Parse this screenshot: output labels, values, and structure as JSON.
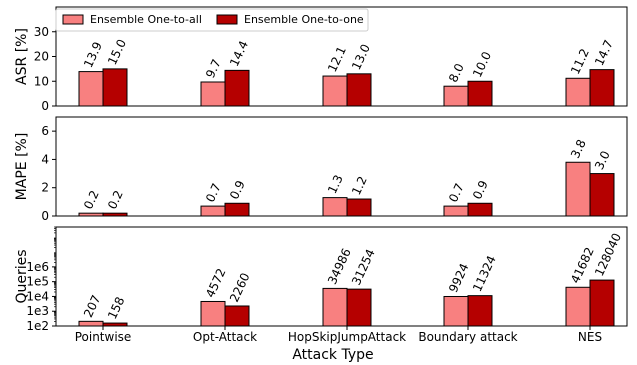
{
  "chart_data": [
    {
      "type": "bar",
      "panel": "asr",
      "ylabel": "ASR [%]",
      "ylim": [
        0,
        40
      ],
      "yticks": [
        "0",
        "10",
        "20",
        "30"
      ],
      "ytick_values": [
        0,
        10,
        20,
        30
      ],
      "scale": "linear",
      "categories": [
        "Pointwise",
        "Opt-Attack",
        "HopSkipJumpAttack",
        "Boundary attack",
        "NES"
      ],
      "series": [
        {
          "name": "Ensemble One-to-all",
          "values": [
            13.9,
            9.7,
            12.1,
            8.0,
            11.2
          ],
          "labels": [
            "13.9",
            "9.7",
            "12.1",
            "8.0",
            "11.2"
          ]
        },
        {
          "name": "Ensemble One-to-one",
          "values": [
            15.0,
            14.4,
            13.0,
            10.0,
            14.7
          ],
          "labels": [
            "15.0",
            "14.4",
            "13.0",
            "10.0",
            "14.7"
          ]
        }
      ],
      "legend": "top-left"
    },
    {
      "type": "bar",
      "panel": "mape",
      "ylabel": "MAPE [%]",
      "ylim": [
        0,
        7
      ],
      "yticks": [
        "0",
        "2",
        "4",
        "6"
      ],
      "ytick_values": [
        0,
        2,
        4,
        6
      ],
      "scale": "linear",
      "categories": [
        "Pointwise",
        "Opt-Attack",
        "HopSkipJumpAttack",
        "Boundary attack",
        "NES"
      ],
      "series": [
        {
          "name": "Ensemble One-to-all",
          "values": [
            0.2,
            0.7,
            1.3,
            0.7,
            3.8
          ],
          "labels": [
            "0.2",
            "0.7",
            "1.3",
            "0.7",
            "3.8"
          ]
        },
        {
          "name": "Ensemble One-to-one",
          "values": [
            0.2,
            0.9,
            1.2,
            0.9,
            3.0
          ],
          "labels": [
            "0.2",
            "0.9",
            "1.2",
            "0.9",
            "3.0"
          ]
        }
      ]
    },
    {
      "type": "bar",
      "panel": "queries",
      "ylabel": "Queries",
      "ylim": [
        100,
        500000000
      ],
      "yticks": [
        "1e2",
        "1e3",
        "1e4",
        "1e5",
        "1e6"
      ],
      "ytick_values": [
        100,
        1000,
        10000,
        100000,
        1000000
      ],
      "scale": "log",
      "xlabel": "Attack Type",
      "categories": [
        "Pointwise",
        "Opt-Attack",
        "HopSkipJumpAttack",
        "Boundary attack",
        "NES"
      ],
      "series": [
        {
          "name": "Ensemble One-to-all",
          "values": [
            207,
            4572,
            34986,
            9924,
            41682
          ],
          "labels": [
            "207",
            "4572",
            "34986",
            "9924",
            "41682"
          ]
        },
        {
          "name": "Ensemble One-to-one",
          "values": [
            158,
            2260,
            31254,
            11324,
            128040
          ],
          "labels": [
            "158",
            "2260",
            "31254",
            "11324",
            "128040"
          ]
        }
      ]
    }
  ],
  "colors": {
    "series_1": "#f88080",
    "series_2": "#b50000"
  }
}
